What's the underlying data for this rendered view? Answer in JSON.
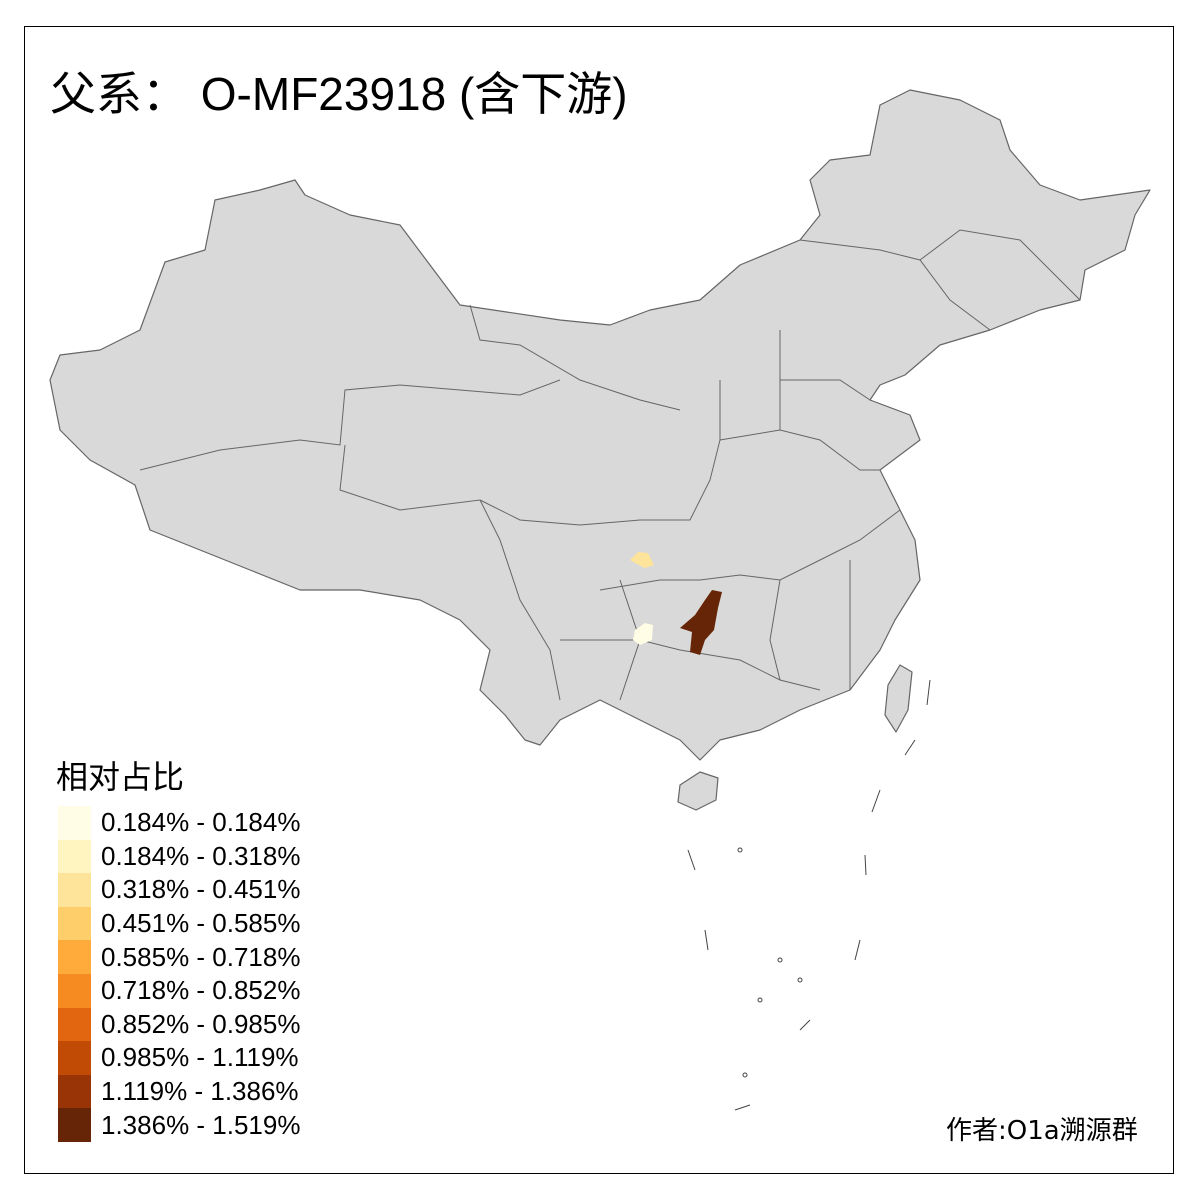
{
  "title": "父系： O-MF23918 (含下游)",
  "legend": {
    "title": "相对占比",
    "items": [
      {
        "label": "0.184% - 0.184%",
        "color": "#FFFDE6"
      },
      {
        "label": "0.184% - 0.318%",
        "color": "#FFF5C0"
      },
      {
        "label": "0.318% - 0.451%",
        "color": "#FEE49A"
      },
      {
        "label": "0.451% - 0.585%",
        "color": "#FECE6A"
      },
      {
        "label": "0.585% - 0.718%",
        "color": "#FEAB3C"
      },
      {
        "label": "0.718% - 0.852%",
        "color": "#F68B22"
      },
      {
        "label": "0.852% - 0.985%",
        "color": "#E2650F"
      },
      {
        "label": "0.985% - 1.119%",
        "color": "#C14A04"
      },
      {
        "label": "1.119% - 1.386%",
        "color": "#983405"
      },
      {
        "label": "1.386% - 1.519%",
        "color": "#662506"
      }
    ]
  },
  "map": {
    "base_color": "#D9D9D9",
    "border_color": "#666666",
    "highlighted_regions": [
      {
        "fill": "#662506"
      },
      {
        "fill": "#FEE49A"
      },
      {
        "fill": "#FFFDE6"
      }
    ]
  },
  "author": "作者:O1a溯源群"
}
